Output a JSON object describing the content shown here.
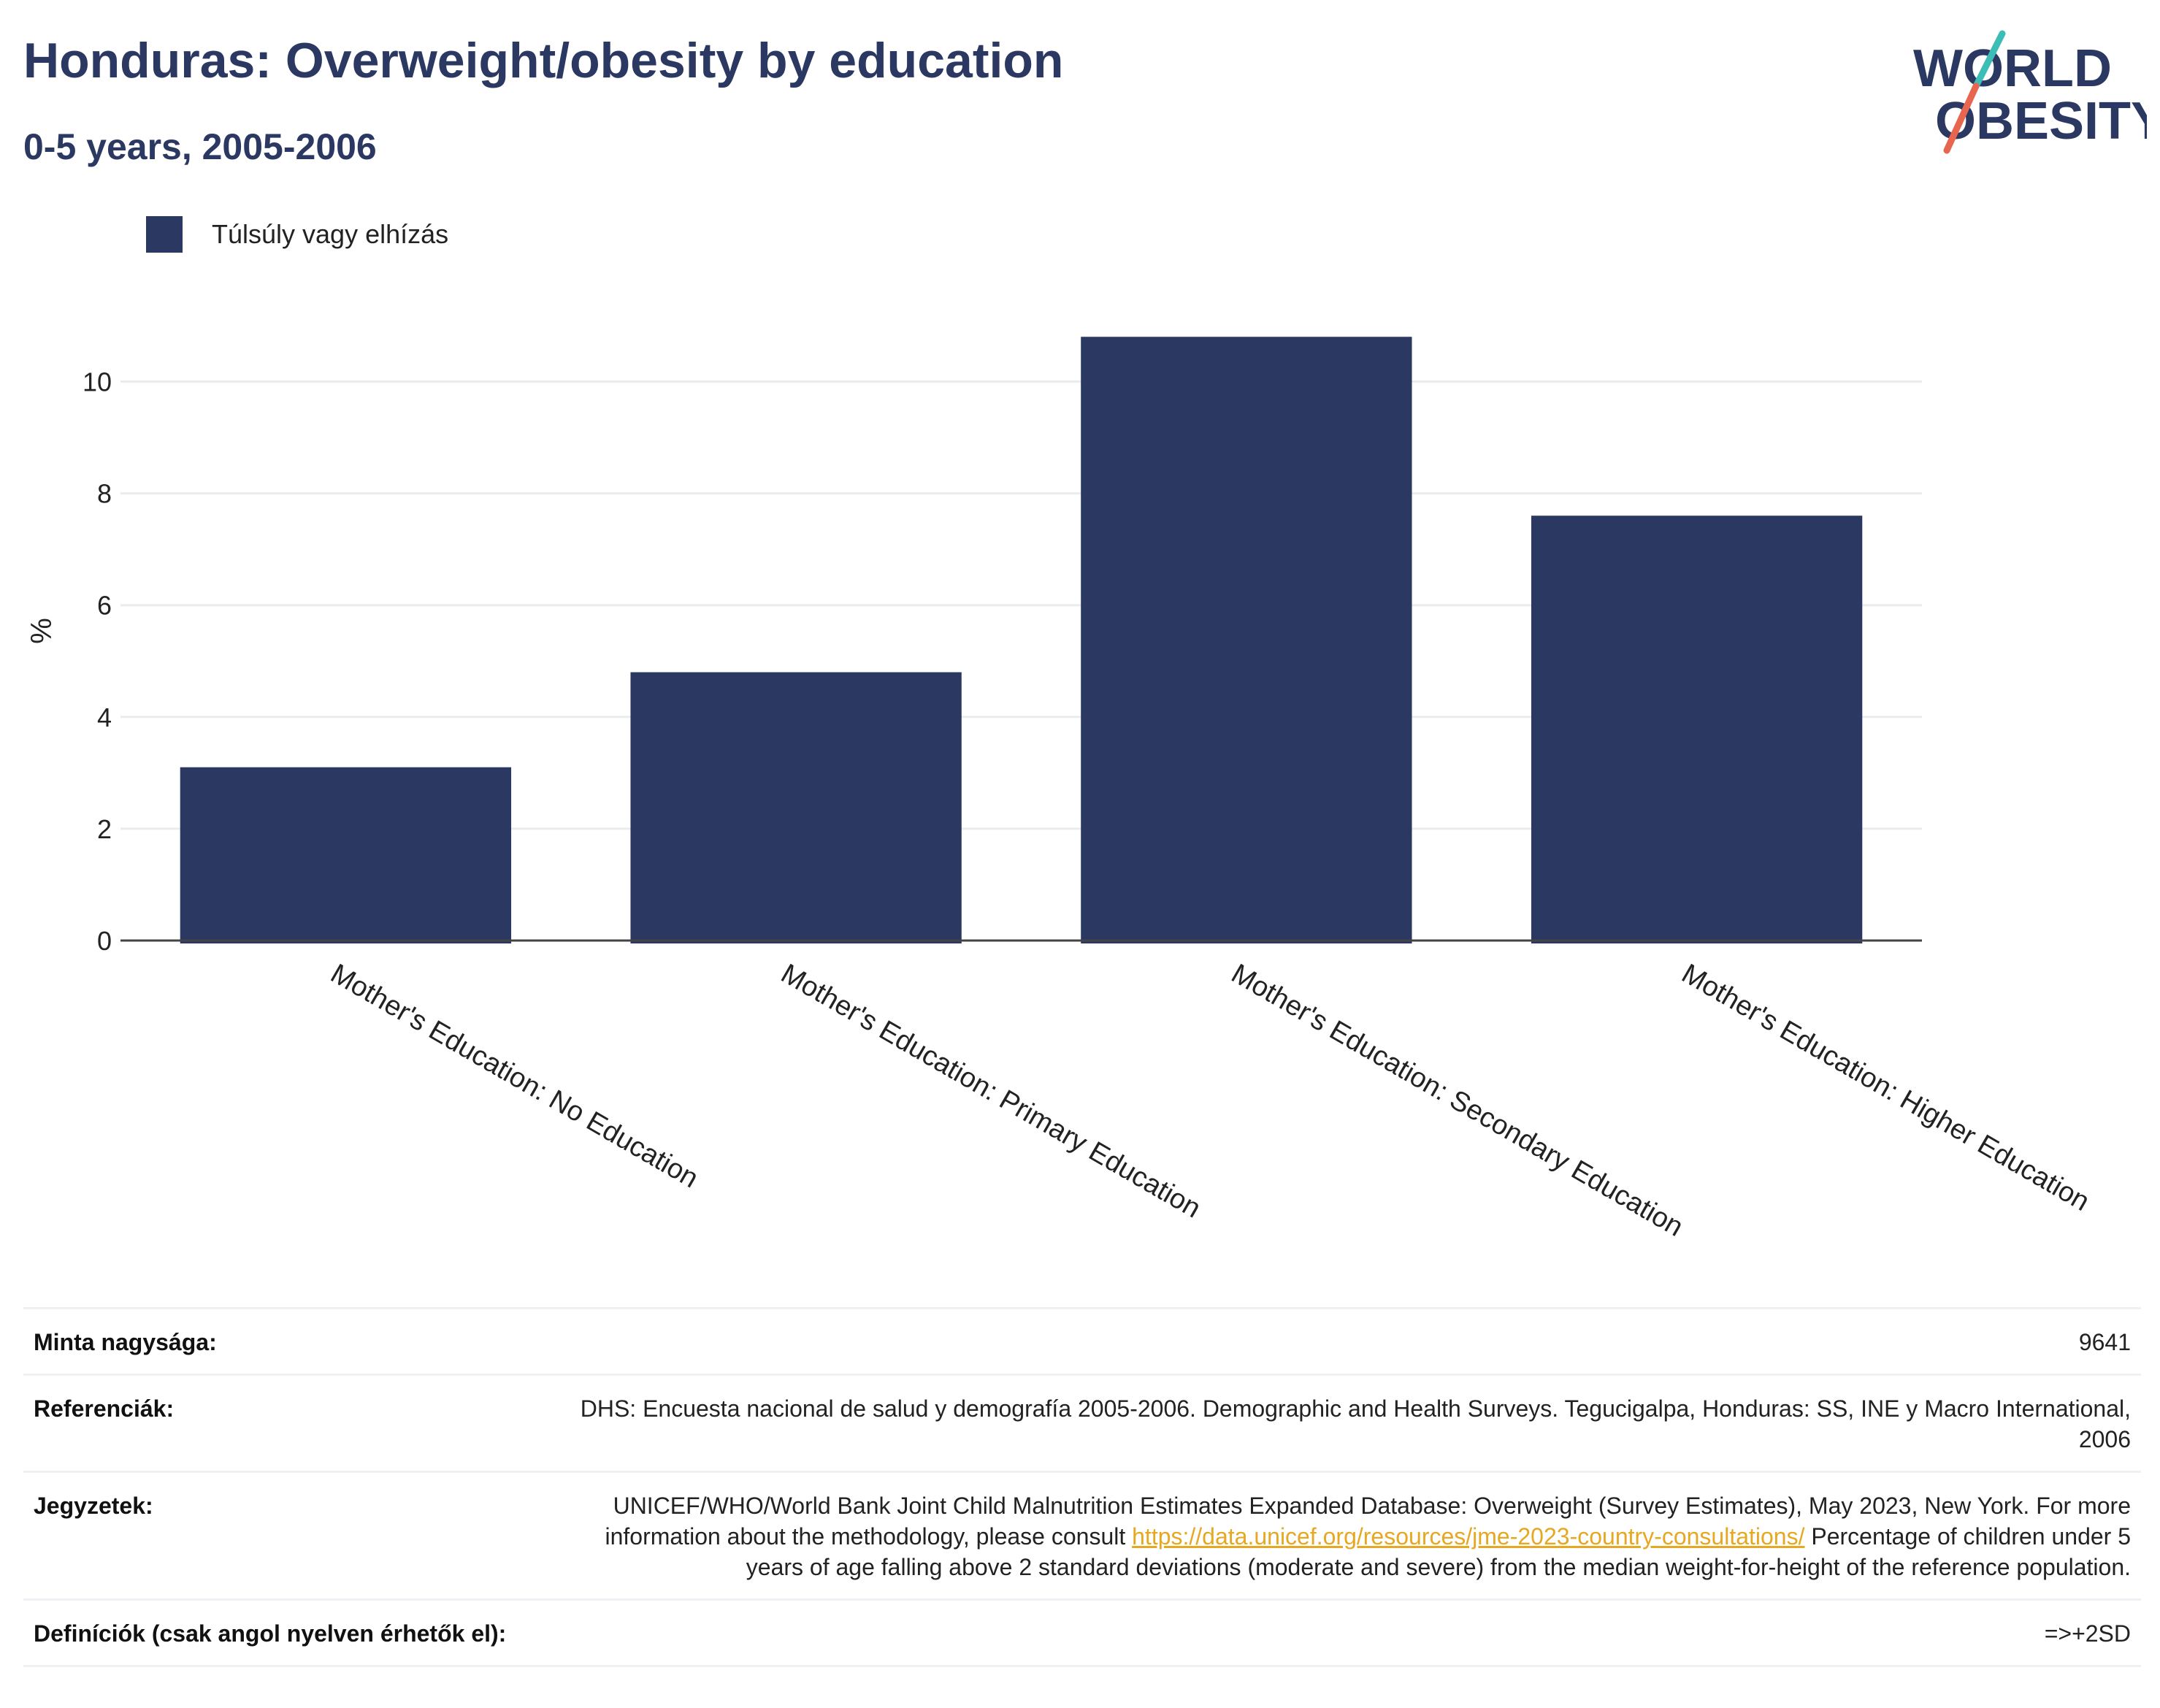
{
  "title": "Honduras: Overweight/obesity by education",
  "subtitle": "0-5 years, 2005-2006",
  "logo": {
    "line1": "WORLD",
    "line2": "OBESITY",
    "accent_teal": "#3dbdb8",
    "accent_red": "#e8664f"
  },
  "colors": {
    "bar": "#2b3862",
    "grid": "#e9ecef",
    "axis": "#444444"
  },
  "chart_data": {
    "type": "bar",
    "categories": [
      "Mother's Education: No Education",
      "Mother's Education: Primary Education",
      "Mother's Education: Secondary Education",
      "Mother's Education: Higher Education"
    ],
    "series": [
      {
        "name": "Túlsúly vagy elhízás",
        "values": [
          3.1,
          4.8,
          10.8,
          7.6
        ]
      }
    ],
    "ylabel": "%",
    "xlabel": "",
    "ylim": [
      0,
      11.6
    ],
    "yticks": [
      0,
      2,
      4,
      6,
      8,
      10
    ],
    "grid": true,
    "legend": "top-left"
  },
  "info": {
    "sample_label": "Minta nagysága:",
    "sample_value": "9641",
    "refs_label": "Referenciák:",
    "refs_value": "DHS: Encuesta nacional de salud y demografía 2005-2006. Demographic and Health Surveys. Tegucigalpa, Honduras: SS, INE y Macro International, 2006",
    "notes_label": "Jegyzetek:",
    "notes_text1": "UNICEF/WHO/World Bank Joint Child Malnutrition Estimates Expanded Database: Overweight (Survey Estimates), May 2023, New York. For more information about the methodology, please consult",
    "notes_link": "https://data.unicef.org/resources/jme-2023-country-consultations/",
    "notes_text2": "Percentage of children under 5 years of age falling above 2 standard deviations (moderate and severe) from the median weight-for-height of the reference population.",
    "defs_label": "Definíciók (csak angol nyelven érhetők el):",
    "defs_value": "=>+2SD"
  }
}
